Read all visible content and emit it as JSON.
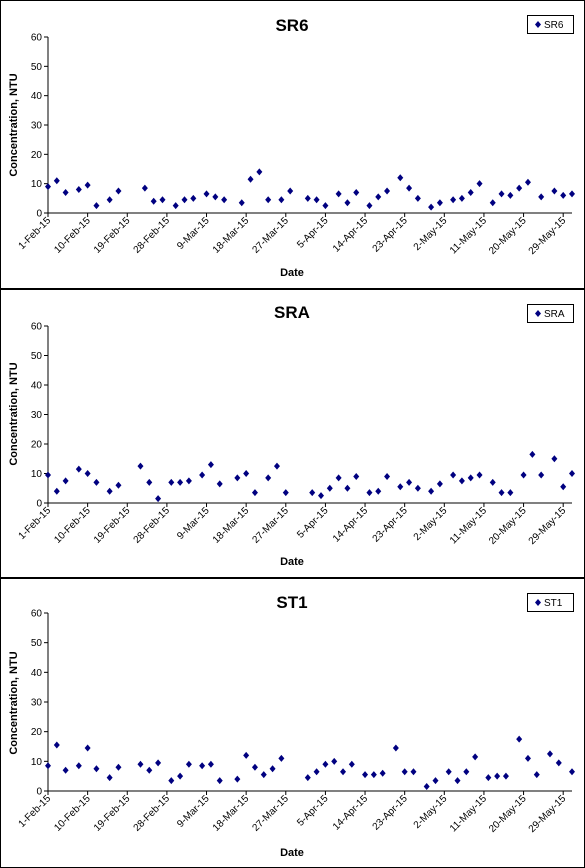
{
  "chart_data": [
    {
      "type": "scatter",
      "title": "SR6",
      "xlabel": "Date",
      "ylabel": "Concentration, NTU",
      "ylim": [
        0,
        60
      ],
      "yticks": [
        "0",
        "10",
        "20",
        "30",
        "40",
        "50",
        "60"
      ],
      "xticks": [
        "1-Feb-15",
        "10-Feb-15",
        "19-Feb-15",
        "28-Feb-15",
        "9-Mar-15",
        "18-Mar-15",
        "27-Mar-15",
        "5-Apr-15",
        "14-Apr-15",
        "23-Apr-15",
        "2-May-15",
        "11-May-15",
        "20-May-15",
        "29-May-15"
      ],
      "xrange": [
        "2015-02-01",
        "2015-05-31"
      ],
      "grid": false,
      "legend": "top-right",
      "marker_color": "#000080",
      "series": [
        {
          "name": "SR6",
          "points": [
            [
              "2015-02-01",
              9
            ],
            [
              "2015-02-03",
              11
            ],
            [
              "2015-02-05",
              7
            ],
            [
              "2015-02-08",
              8
            ],
            [
              "2015-02-10",
              9.5
            ],
            [
              "2015-02-12",
              2.5
            ],
            [
              "2015-02-15",
              4.5
            ],
            [
              "2015-02-17",
              7.5
            ],
            [
              "2015-02-23",
              8.5
            ],
            [
              "2015-02-25",
              4
            ],
            [
              "2015-02-27",
              4.5
            ],
            [
              "2015-03-02",
              2.5
            ],
            [
              "2015-03-04",
              4.5
            ],
            [
              "2015-03-06",
              5
            ],
            [
              "2015-03-09",
              6.5
            ],
            [
              "2015-03-11",
              5.5
            ],
            [
              "2015-03-13",
              4.5
            ],
            [
              "2015-03-17",
              3.5
            ],
            [
              "2015-03-19",
              11.5
            ],
            [
              "2015-03-21",
              14
            ],
            [
              "2015-03-23",
              4.5
            ],
            [
              "2015-03-26",
              4.5
            ],
            [
              "2015-03-28",
              7.5
            ],
            [
              "2015-04-01",
              5
            ],
            [
              "2015-04-03",
              4.5
            ],
            [
              "2015-04-05",
              2.5
            ],
            [
              "2015-04-08",
              6.5
            ],
            [
              "2015-04-10",
              3.5
            ],
            [
              "2015-04-12",
              7
            ],
            [
              "2015-04-15",
              2.5
            ],
            [
              "2015-04-17",
              5.5
            ],
            [
              "2015-04-19",
              7.5
            ],
            [
              "2015-04-22",
              12
            ],
            [
              "2015-04-24",
              8.5
            ],
            [
              "2015-04-26",
              5
            ],
            [
              "2015-04-29",
              2
            ],
            [
              "2015-05-01",
              3.5
            ],
            [
              "2015-05-04",
              4.5
            ],
            [
              "2015-05-06",
              5
            ],
            [
              "2015-05-08",
              7
            ],
            [
              "2015-05-10",
              10
            ],
            [
              "2015-05-13",
              3.5
            ],
            [
              "2015-05-15",
              6.5
            ],
            [
              "2015-05-17",
              6
            ],
            [
              "2015-05-19",
              8.5
            ],
            [
              "2015-05-21",
              10.5
            ],
            [
              "2015-05-24",
              5.5
            ],
            [
              "2015-05-27",
              7.5
            ],
            [
              "2015-05-29",
              6
            ],
            [
              "2015-05-31",
              6.5
            ]
          ]
        }
      ]
    },
    {
      "type": "scatter",
      "title": "SRA",
      "xlabel": "Date",
      "ylabel": "Concentration, NTU",
      "ylim": [
        0,
        60
      ],
      "yticks": [
        "0",
        "10",
        "20",
        "30",
        "40",
        "50",
        "60"
      ],
      "xticks": [
        "1-Feb-15",
        "10-Feb-15",
        "19-Feb-15",
        "28-Feb-15",
        "9-Mar-15",
        "18-Mar-15",
        "27-Mar-15",
        "5-Apr-15",
        "14-Apr-15",
        "23-Apr-15",
        "2-May-15",
        "11-May-15",
        "20-May-15",
        "29-May-15"
      ],
      "xrange": [
        "2015-02-01",
        "2015-05-31"
      ],
      "grid": false,
      "legend": "top-right",
      "marker_color": "#000080",
      "series": [
        {
          "name": "SRA",
          "points": [
            [
              "2015-02-01",
              9.5
            ],
            [
              "2015-02-03",
              4
            ],
            [
              "2015-02-05",
              7.5
            ],
            [
              "2015-02-08",
              11.5
            ],
            [
              "2015-02-10",
              10
            ],
            [
              "2015-02-12",
              7
            ],
            [
              "2015-02-15",
              4
            ],
            [
              "2015-02-17",
              6
            ],
            [
              "2015-02-22",
              12.5
            ],
            [
              "2015-02-24",
              7
            ],
            [
              "2015-02-26",
              1.5
            ],
            [
              "2015-03-01",
              7
            ],
            [
              "2015-03-03",
              7
            ],
            [
              "2015-03-05",
              7.5
            ],
            [
              "2015-03-08",
              9.5
            ],
            [
              "2015-03-10",
              13
            ],
            [
              "2015-03-12",
              6.5
            ],
            [
              "2015-03-16",
              8.5
            ],
            [
              "2015-03-18",
              10
            ],
            [
              "2015-03-20",
              3.5
            ],
            [
              "2015-03-23",
              8.5
            ],
            [
              "2015-03-25",
              12.5
            ],
            [
              "2015-03-27",
              3.5
            ],
            [
              "2015-04-02",
              3.5
            ],
            [
              "2015-04-04",
              2.5
            ],
            [
              "2015-04-06",
              5
            ],
            [
              "2015-04-08",
              8.5
            ],
            [
              "2015-04-10",
              5
            ],
            [
              "2015-04-12",
              9
            ],
            [
              "2015-04-15",
              3.5
            ],
            [
              "2015-04-17",
              4
            ],
            [
              "2015-04-19",
              9
            ],
            [
              "2015-04-22",
              5.5
            ],
            [
              "2015-04-24",
              7
            ],
            [
              "2015-04-26",
              5
            ],
            [
              "2015-04-29",
              4
            ],
            [
              "2015-05-01",
              6.5
            ],
            [
              "2015-05-04",
              9.5
            ],
            [
              "2015-05-06",
              7.5
            ],
            [
              "2015-05-08",
              8.5
            ],
            [
              "2015-05-10",
              9.5
            ],
            [
              "2015-05-13",
              7
            ],
            [
              "2015-05-15",
              3.5
            ],
            [
              "2015-05-17",
              3.5
            ],
            [
              "2015-05-20",
              9.5
            ],
            [
              "2015-05-22",
              16.5
            ],
            [
              "2015-05-24",
              9.5
            ],
            [
              "2015-05-27",
              15
            ],
            [
              "2015-05-29",
              5.5
            ],
            [
              "2015-05-31",
              10
            ]
          ]
        }
      ]
    },
    {
      "type": "scatter",
      "title": "ST1",
      "xlabel": "Date",
      "ylabel": "Concentration, NTU",
      "ylim": [
        0,
        60
      ],
      "yticks": [
        "0",
        "10",
        "20",
        "30",
        "40",
        "50",
        "60"
      ],
      "xticks": [
        "1-Feb-15",
        "10-Feb-15",
        "19-Feb-15",
        "28-Feb-15",
        "9-Mar-15",
        "18-Mar-15",
        "27-Mar-15",
        "5-Apr-15",
        "14-Apr-15",
        "23-Apr-15",
        "2-May-15",
        "11-May-15",
        "20-May-15",
        "29-May-15"
      ],
      "xrange": [
        "2015-02-01",
        "2015-05-31"
      ],
      "grid": false,
      "legend": "top-right",
      "marker_color": "#000080",
      "series": [
        {
          "name": "ST1",
          "points": [
            [
              "2015-02-01",
              8.5
            ],
            [
              "2015-02-03",
              15.5
            ],
            [
              "2015-02-05",
              7
            ],
            [
              "2015-02-08",
              8.5
            ],
            [
              "2015-02-10",
              14.5
            ],
            [
              "2015-02-12",
              7.5
            ],
            [
              "2015-02-15",
              4.5
            ],
            [
              "2015-02-17",
              8
            ],
            [
              "2015-02-22",
              9
            ],
            [
              "2015-02-24",
              7
            ],
            [
              "2015-02-26",
              9.5
            ],
            [
              "2015-03-01",
              3.5
            ],
            [
              "2015-03-03",
              5
            ],
            [
              "2015-03-05",
              9
            ],
            [
              "2015-03-08",
              8.5
            ],
            [
              "2015-03-10",
              9
            ],
            [
              "2015-03-12",
              3.5
            ],
            [
              "2015-03-16",
              4
            ],
            [
              "2015-03-18",
              12
            ],
            [
              "2015-03-20",
              8
            ],
            [
              "2015-03-22",
              5.5
            ],
            [
              "2015-03-24",
              7.5
            ],
            [
              "2015-03-26",
              11
            ],
            [
              "2015-04-01",
              4.5
            ],
            [
              "2015-04-03",
              6.5
            ],
            [
              "2015-04-05",
              9
            ],
            [
              "2015-04-07",
              10
            ],
            [
              "2015-04-09",
              6.5
            ],
            [
              "2015-04-11",
              9
            ],
            [
              "2015-04-14",
              5.5
            ],
            [
              "2015-04-16",
              5.5
            ],
            [
              "2015-04-18",
              6
            ],
            [
              "2015-04-21",
              14.5
            ],
            [
              "2015-04-23",
              6.5
            ],
            [
              "2015-04-25",
              6.5
            ],
            [
              "2015-04-28",
              1.5
            ],
            [
              "2015-04-30",
              3.5
            ],
            [
              "2015-05-03",
              6.5
            ],
            [
              "2015-05-05",
              3.5
            ],
            [
              "2015-05-07",
              6.5
            ],
            [
              "2015-05-09",
              11.5
            ],
            [
              "2015-05-12",
              4.5
            ],
            [
              "2015-05-14",
              5
            ],
            [
              "2015-05-16",
              5
            ],
            [
              "2015-05-19",
              17.5
            ],
            [
              "2015-05-21",
              11
            ],
            [
              "2015-05-23",
              5.5
            ],
            [
              "2015-05-26",
              12.5
            ],
            [
              "2015-05-28",
              9.5
            ],
            [
              "2015-05-31",
              6.5
            ]
          ]
        }
      ]
    }
  ]
}
